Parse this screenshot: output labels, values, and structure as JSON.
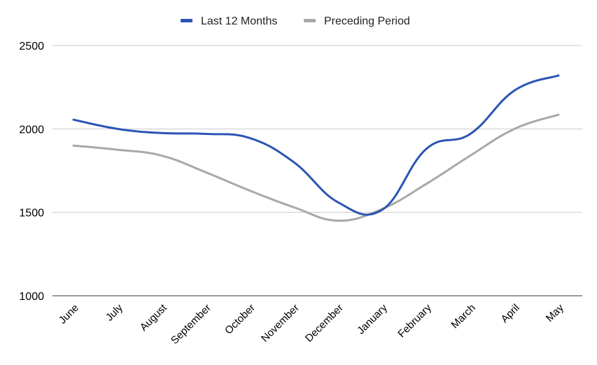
{
  "chart_data": {
    "type": "line",
    "categories": [
      "June",
      "July",
      "August",
      "September",
      "October",
      "November",
      "December",
      "January",
      "February",
      "March",
      "April",
      "May"
    ],
    "series": [
      {
        "name": "Last 12 Months",
        "color": "#2b54b4",
        "values": [
          2055,
          2000,
          1975,
          1970,
          1945,
          1800,
          1560,
          1515,
          1880,
          1970,
          2230,
          2320
        ]
      },
      {
        "name": "Preceding Period",
        "color": "#a8a8a8",
        "values": [
          1900,
          1875,
          1840,
          1740,
          1630,
          1530,
          1450,
          1520,
          1670,
          1840,
          2000,
          2085
        ]
      }
    ],
    "yticks": [
      1000,
      1500,
      2000,
      2500
    ],
    "ylim": [
      1000,
      2500
    ],
    "grid": true,
    "legend_position": "top-center",
    "title": "",
    "xlabel": "",
    "ylabel": ""
  }
}
